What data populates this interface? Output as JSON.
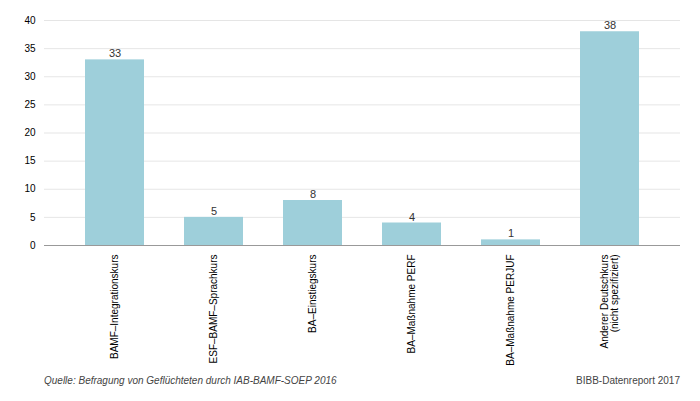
{
  "chart_data": {
    "type": "bar",
    "categories": [
      "BAMF–Integrationskurs",
      "ESF–BAMF–Sprachkurs",
      "BA–Einstiegskurs",
      "BA–Maßnahme PERF",
      "BA–Maßnahme PERJUF",
      "Anderer Deutschkurs\n(nicht spezifiziert)"
    ],
    "values": [
      33,
      5,
      8,
      4,
      1,
      38
    ],
    "color": "#9ecfda",
    "ylim": [
      0,
      40
    ],
    "yticks": [
      0,
      5,
      10,
      15,
      20,
      25,
      30,
      35,
      40
    ],
    "grid": true,
    "data_labels": true,
    "annotations": [
      "Quelle: Befragung von Geflüchteten durch IAB-BAMF-SOEP 2016",
      "BIBB-Datenreport 2017"
    ]
  }
}
